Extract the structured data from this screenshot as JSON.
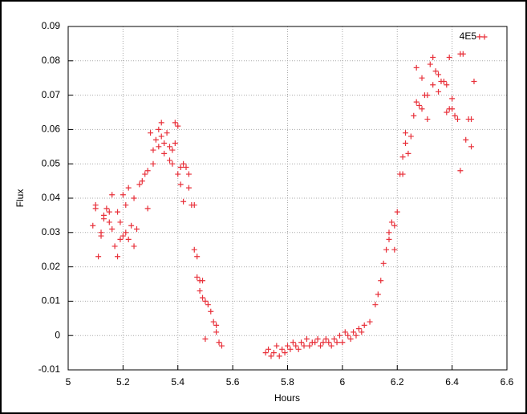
{
  "chart_data": {
    "type": "scatter",
    "xlabel": "Hours",
    "ylabel": "Flux",
    "xlim": [
      5,
      6.6
    ],
    "ylim": [
      -0.01,
      0.09
    ],
    "xticks": [
      5,
      5.2,
      5.4,
      5.6,
      5.8,
      6,
      6.2,
      6.4,
      6.6
    ],
    "yticks": [
      -0.01,
      0,
      0.01,
      0.02,
      0.03,
      0.04,
      0.05,
      0.06,
      0.07,
      0.08,
      0.09
    ],
    "grid": true,
    "legend": "upper right",
    "x": [
      5.09,
      5.1,
      5.1,
      5.11,
      5.12,
      5.12,
      5.13,
      5.13,
      5.14,
      5.15,
      5.15,
      5.16,
      5.16,
      5.17,
      5.18,
      5.18,
      5.19,
      5.19,
      5.2,
      5.2,
      5.21,
      5.21,
      5.22,
      5.22,
      5.23,
      5.24,
      5.24,
      5.25,
      5.26,
      5.27,
      5.28,
      5.29,
      5.29,
      5.3,
      5.31,
      5.31,
      5.32,
      5.33,
      5.33,
      5.34,
      5.34,
      5.35,
      5.35,
      5.36,
      5.37,
      5.37,
      5.38,
      5.38,
      5.39,
      5.39,
      5.4,
      5.4,
      5.41,
      5.41,
      5.42,
      5.42,
      5.43,
      5.44,
      5.44,
      5.45,
      5.46,
      5.46,
      5.47,
      5.47,
      5.48,
      5.48,
      5.49,
      5.49,
      5.5,
      5.5,
      5.51,
      5.52,
      5.53,
      5.54,
      5.54,
      5.55,
      5.56,
      5.72,
      5.73,
      5.74,
      5.75,
      5.76,
      5.77,
      5.78,
      5.79,
      5.8,
      5.81,
      5.82,
      5.83,
      5.84,
      5.85,
      5.86,
      5.87,
      5.88,
      5.89,
      5.9,
      5.91,
      5.92,
      5.93,
      5.94,
      5.95,
      5.96,
      5.97,
      5.98,
      5.99,
      6.0,
      6.01,
      6.02,
      6.03,
      6.04,
      6.05,
      6.06,
      6.07,
      6.08,
      6.1,
      6.12,
      6.13,
      6.14,
      6.15,
      6.16,
      6.17,
      6.17,
      6.18,
      6.19,
      6.19,
      6.2,
      6.21,
      6.22,
      6.22,
      6.23,
      6.23,
      6.24,
      6.25,
      6.26,
      6.27,
      6.27,
      6.28,
      6.29,
      6.29,
      6.3,
      6.31,
      6.31,
      6.32,
      6.33,
      6.33,
      6.34,
      6.35,
      6.35,
      6.36,
      6.37,
      6.38,
      6.38,
      6.39,
      6.39,
      6.4,
      6.4,
      6.41,
      6.42,
      6.43,
      6.43,
      6.44,
      6.45,
      6.46,
      6.47,
      6.47,
      6.48,
      6.5
    ],
    "series": [
      {
        "name": "4E5",
        "color": "#e8303a",
        "values": [
          0.032,
          0.038,
          0.037,
          0.023,
          0.03,
          0.029,
          0.035,
          0.034,
          0.037,
          0.033,
          0.036,
          0.041,
          0.031,
          0.026,
          0.023,
          0.036,
          0.033,
          0.028,
          0.041,
          0.029,
          0.03,
          0.038,
          0.028,
          0.043,
          0.032,
          0.026,
          0.04,
          0.031,
          0.044,
          0.045,
          0.047,
          0.048,
          0.037,
          0.059,
          0.05,
          0.054,
          0.057,
          0.06,
          0.055,
          0.062,
          0.058,
          0.056,
          0.053,
          0.059,
          0.051,
          0.055,
          0.05,
          0.054,
          0.056,
          0.062,
          0.061,
          0.047,
          0.049,
          0.044,
          0.05,
          0.039,
          0.049,
          0.047,
          0.043,
          0.038,
          0.038,
          0.025,
          0.023,
          0.017,
          0.016,
          0.013,
          0.016,
          0.011,
          -0.001,
          0.01,
          0.009,
          0.007,
          0.004,
          0.003,
          0.001,
          -0.002,
          -0.003,
          -0.005,
          -0.004,
          -0.006,
          -0.005,
          -0.003,
          -0.006,
          -0.004,
          -0.005,
          -0.003,
          -0.004,
          -0.002,
          -0.003,
          -0.004,
          -0.002,
          -0.003,
          -0.001,
          -0.003,
          -0.002,
          -0.002,
          -0.001,
          -0.003,
          -0.002,
          -0.001,
          -0.002,
          -0.003,
          -0.001,
          -0.002,
          0.0,
          -0.002,
          0.001,
          0.0,
          -0.001,
          0.001,
          0.0,
          0.002,
          0.001,
          0.003,
          0.004,
          0.009,
          0.012,
          0.016,
          0.021,
          0.025,
          0.03,
          0.028,
          0.033,
          0.032,
          0.025,
          0.036,
          0.047,
          0.047,
          0.052,
          0.056,
          0.059,
          0.053,
          0.058,
          0.064,
          0.078,
          0.068,
          0.067,
          0.075,
          0.066,
          0.07,
          0.063,
          0.07,
          0.079,
          0.081,
          0.073,
          0.077,
          0.071,
          0.076,
          0.074,
          0.074,
          0.073,
          0.065,
          0.081,
          0.066,
          0.069,
          0.066,
          0.064,
          0.063,
          0.048,
          0.082,
          0.082,
          0.057,
          0.063,
          0.055,
          0.063,
          0.074,
          0.087
        ]
      }
    ]
  }
}
